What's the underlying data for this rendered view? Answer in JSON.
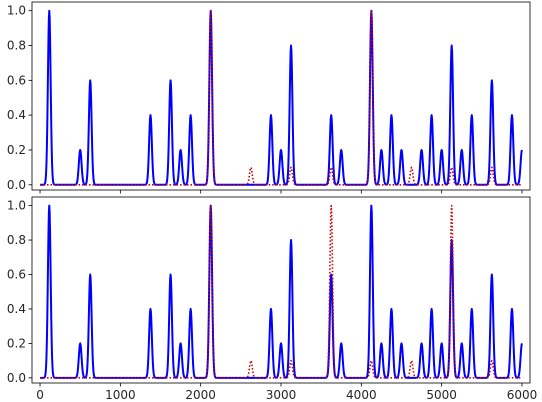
{
  "chart_data": [
    {
      "type": "line",
      "xlim": [
        -100,
        6100
      ],
      "ylim": [
        -0.03,
        1.05
      ],
      "yticks": [
        "0.0",
        "0.2",
        "0.4",
        "0.6",
        "0.8",
        "1.0"
      ],
      "grid": false,
      "series": [
        {
          "color": "#0000ff",
          "style": "solid",
          "peaks": [
            {
              "x": 115,
              "y": 1.0
            },
            {
              "x": 500,
              "y": 0.2
            },
            {
              "x": 625,
              "y": 0.6
            },
            {
              "x": 1375,
              "y": 0.4
            },
            {
              "x": 1625,
              "y": 0.6
            },
            {
              "x": 1750,
              "y": 0.2
            },
            {
              "x": 1875,
              "y": 0.4
            },
            {
              "x": 2125,
              "y": 1.0
            },
            {
              "x": 2875,
              "y": 0.4
            },
            {
              "x": 3000,
              "y": 0.2
            },
            {
              "x": 3125,
              "y": 0.8
            },
            {
              "x": 3625,
              "y": 0.4
            },
            {
              "x": 3750,
              "y": 0.2
            },
            {
              "x": 4125,
              "y": 1.0
            },
            {
              "x": 4250,
              "y": 0.2
            },
            {
              "x": 4375,
              "y": 0.4
            },
            {
              "x": 4500,
              "y": 0.2
            },
            {
              "x": 4750,
              "y": 0.2
            },
            {
              "x": 4875,
              "y": 0.4
            },
            {
              "x": 5000,
              "y": 0.2
            },
            {
              "x": 5125,
              "y": 0.8
            },
            {
              "x": 5250,
              "y": 0.2
            },
            {
              "x": 5375,
              "y": 0.4
            },
            {
              "x": 5625,
              "y": 0.6
            },
            {
              "x": 5875,
              "y": 0.4
            },
            {
              "x": 6000,
              "y": 0.2
            }
          ]
        },
        {
          "color": "#cc0000",
          "style": "dotted",
          "peaks": [
            {
              "x": 2125,
              "y": 1.0
            },
            {
              "x": 2625,
              "y": 0.1
            },
            {
              "x": 3125,
              "y": 0.1
            },
            {
              "x": 3625,
              "y": 0.1
            },
            {
              "x": 4125,
              "y": 1.0
            },
            {
              "x": 4625,
              "y": 0.1
            },
            {
              "x": 5125,
              "y": 0.1
            },
            {
              "x": 5625,
              "y": 0.1
            }
          ]
        }
      ]
    },
    {
      "type": "line",
      "xlim": [
        -100,
        6100
      ],
      "ylim": [
        -0.03,
        1.05
      ],
      "xticks": [
        "0",
        "1000",
        "2000",
        "3000",
        "4000",
        "5000",
        "6000"
      ],
      "yticks": [
        "0.0",
        "0.2",
        "0.4",
        "0.6",
        "0.8",
        "1.0"
      ],
      "grid": false,
      "series": [
        {
          "color": "#0000ff",
          "style": "solid",
          "peaks": [
            {
              "x": 115,
              "y": 1.0
            },
            {
              "x": 500,
              "y": 0.2
            },
            {
              "x": 625,
              "y": 0.6
            },
            {
              "x": 1375,
              "y": 0.4
            },
            {
              "x": 1625,
              "y": 0.6
            },
            {
              "x": 1750,
              "y": 0.2
            },
            {
              "x": 1875,
              "y": 0.4
            },
            {
              "x": 2125,
              "y": 1.0
            },
            {
              "x": 2875,
              "y": 0.4
            },
            {
              "x": 3000,
              "y": 0.2
            },
            {
              "x": 3125,
              "y": 0.8
            },
            {
              "x": 3625,
              "y": 0.6
            },
            {
              "x": 3750,
              "y": 0.2
            },
            {
              "x": 4125,
              "y": 1.0
            },
            {
              "x": 4250,
              "y": 0.2
            },
            {
              "x": 4375,
              "y": 0.4
            },
            {
              "x": 4500,
              "y": 0.2
            },
            {
              "x": 4750,
              "y": 0.2
            },
            {
              "x": 4875,
              "y": 0.4
            },
            {
              "x": 5000,
              "y": 0.2
            },
            {
              "x": 5125,
              "y": 0.8
            },
            {
              "x": 5250,
              "y": 0.2
            },
            {
              "x": 5375,
              "y": 0.4
            },
            {
              "x": 5625,
              "y": 0.6
            },
            {
              "x": 5875,
              "y": 0.4
            },
            {
              "x": 6000,
              "y": 0.2
            }
          ]
        },
        {
          "color": "#cc0000",
          "style": "dotted",
          "peaks": [
            {
              "x": 2125,
              "y": 1.0
            },
            {
              "x": 2625,
              "y": 0.1
            },
            {
              "x": 3125,
              "y": 0.1
            },
            {
              "x": 3625,
              "y": 1.0
            },
            {
              "x": 4125,
              "y": 0.1
            },
            {
              "x": 4625,
              "y": 0.1
            },
            {
              "x": 5125,
              "y": 1.0
            },
            {
              "x": 5625,
              "y": 0.1
            }
          ]
        }
      ]
    }
  ]
}
